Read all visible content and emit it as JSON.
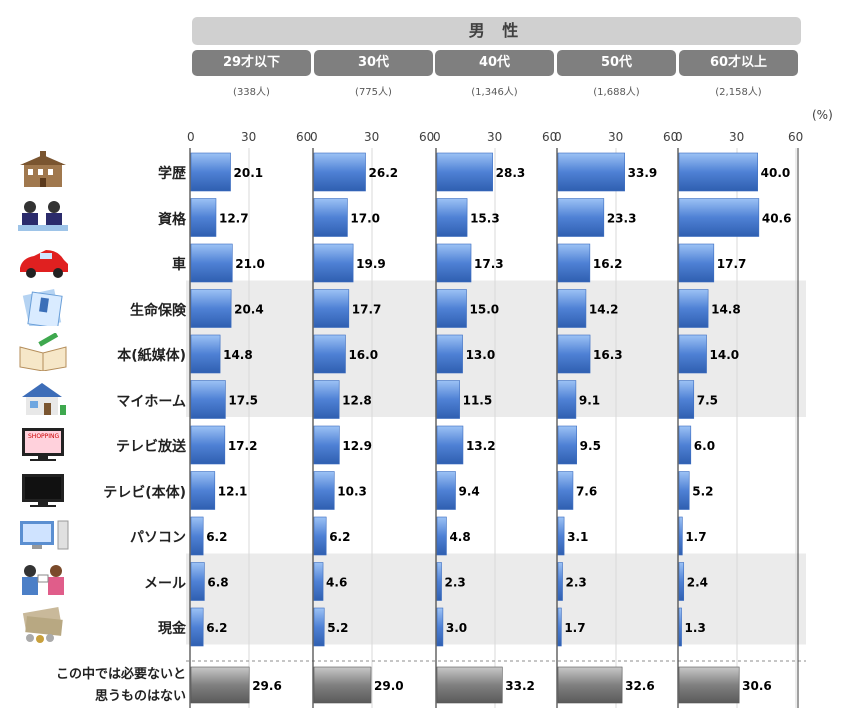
{
  "header": {
    "gender": "男 性",
    "unit": "(%)"
  },
  "colors": {
    "header_bar": "#d0d0d0",
    "age_header": "#7f7f7f",
    "bar_blue": "#4f81d5",
    "bar_gray": "#7f7f7f",
    "band": "#ebebeb"
  },
  "chart_data": {
    "type": "bar",
    "orientation": "horizontal",
    "xlim": [
      0,
      60
    ],
    "ticks": [
      "0",
      "30",
      "60"
    ],
    "categories": [
      "学歴",
      "資格",
      "車",
      "生命保険",
      "本(紙媒体)",
      "マイホーム",
      "テレビ放送",
      "テレビ(本体)",
      "パソコン",
      "メール",
      "現金"
    ],
    "none_label": [
      "この中では必要ないと",
      "思うものはない"
    ],
    "icons": [
      "school-icon",
      "exam-icon",
      "car-icon",
      "insurance-document-icon",
      "book-icon",
      "house-icon",
      "tv-broadcast-icon",
      "tv-set-icon",
      "computer-icon",
      "email-icon",
      "cash-icon"
    ],
    "series": [
      {
        "name": "29才以下",
        "n": "(338人)",
        "values": [
          20.1,
          12.7,
          21.0,
          20.4,
          14.8,
          17.5,
          17.2,
          12.1,
          6.2,
          6.8,
          6.2
        ],
        "none": 29.6
      },
      {
        "name": "30代",
        "n": "(775人)",
        "values": [
          26.2,
          17.0,
          19.9,
          17.7,
          16.0,
          12.8,
          12.9,
          10.3,
          6.2,
          4.6,
          5.2
        ],
        "none": 29.0
      },
      {
        "name": "40代",
        "n": "(1,346人)",
        "values": [
          28.3,
          15.3,
          17.3,
          15.0,
          13.0,
          11.5,
          13.2,
          9.4,
          4.8,
          2.3,
          3.0
        ],
        "none": 33.2
      },
      {
        "name": "50代",
        "n": "(1,688人)",
        "values": [
          33.9,
          23.3,
          16.2,
          14.2,
          16.3,
          9.1,
          9.5,
          7.6,
          3.1,
          2.3,
          1.7
        ],
        "none": 32.6
      },
      {
        "name": "60才以上",
        "n": "(2,158人)",
        "values": [
          40.0,
          40.6,
          17.7,
          14.8,
          14.0,
          7.5,
          6.0,
          5.2,
          1.7,
          2.4,
          1.3
        ],
        "none": 30.6
      }
    ],
    "shaded_rows": [
      3,
      4,
      5,
      9,
      10
    ]
  }
}
